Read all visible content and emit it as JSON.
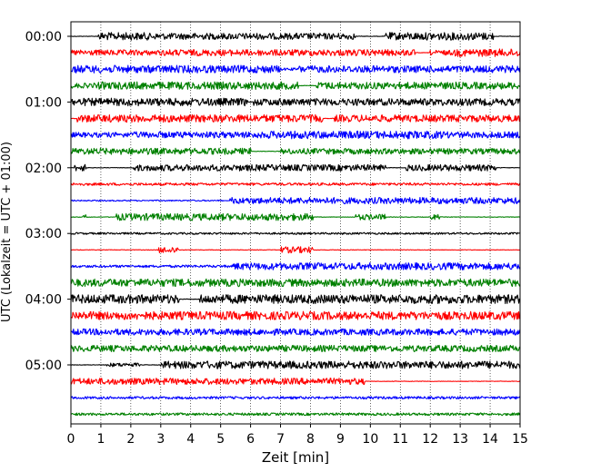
{
  "chart_data": {
    "type": "line",
    "title": "",
    "xlabel": "Zeit  [min]",
    "ylabel": "UTC (Lokalzeit = UTC + 01:00)",
    "xlim": [
      0,
      15
    ],
    "x_ticks": [
      "0",
      "1",
      "2",
      "3",
      "4",
      "5",
      "6",
      "7",
      "8",
      "9",
      "10",
      "11",
      "12",
      "13",
      "14",
      "15"
    ],
    "y_ticks": [
      "00:00",
      "01:00",
      "02:00",
      "03:00",
      "04:00",
      "05:00"
    ],
    "grid": "vertical dotted",
    "color_cycle": [
      "#000000",
      "#ff0000",
      "#0000ff",
      "#008000"
    ],
    "trace_minutes": 15,
    "trace_count": 24,
    "series": [
      {
        "values": [
          [
            0.9,
            2.6,
            0.6
          ],
          [
            2.6,
            6.3,
            0.5
          ],
          [
            6.3,
            9.5,
            0.5
          ],
          [
            10.5,
            14.1,
            0.6
          ]
        ]
      },
      {
        "values": [
          [
            0.0,
            2.5,
            0.45
          ],
          [
            2.5,
            3.0,
            0.4
          ],
          [
            3.0,
            11.5,
            0.5
          ],
          [
            12.0,
            12.8,
            0.4
          ],
          [
            12.8,
            15.0,
            0.6
          ]
        ]
      },
      {
        "values": [
          [
            0.0,
            7.0,
            0.6
          ],
          [
            7.0,
            7.6,
            0.2
          ],
          [
            7.6,
            15.0,
            0.55
          ]
        ]
      },
      {
        "values": [
          [
            0.0,
            0.9,
            0.4
          ],
          [
            0.9,
            7.6,
            0.6
          ],
          [
            8.2,
            15.0,
            0.55
          ]
        ]
      },
      {
        "values": [
          [
            0.0,
            5.9,
            0.6
          ],
          [
            6.1,
            15.0,
            0.55
          ]
        ]
      },
      {
        "values": [
          [
            0.2,
            8.4,
            0.6
          ],
          [
            8.8,
            15.0,
            0.55
          ]
        ]
      },
      {
        "values": [
          [
            0.0,
            2.0,
            0.4
          ],
          [
            2.0,
            6.6,
            0.5
          ],
          [
            6.6,
            12.5,
            0.6
          ],
          [
            12.5,
            15.0,
            0.5
          ]
        ]
      },
      {
        "values": [
          [
            0.0,
            6.0,
            0.5
          ],
          [
            7.0,
            15.0,
            0.45
          ]
        ]
      },
      {
        "values": [
          [
            0.1,
            0.5,
            0.55
          ],
          [
            2.1,
            10.5,
            0.5
          ],
          [
            11.2,
            14.2,
            0.5
          ]
        ]
      },
      {
        "values": [
          [
            0.0,
            15.0,
            0.2
          ]
        ]
      },
      {
        "values": [
          [
            0.0,
            5.1,
            0.1
          ],
          [
            5.3,
            7.7,
            0.5
          ],
          [
            7.7,
            15.0,
            0.5
          ]
        ]
      },
      {
        "values": [
          [
            0.4,
            0.5,
            0.4
          ],
          [
            1.5,
            8.1,
            0.55
          ],
          [
            9.5,
            10.5,
            0.45
          ],
          [
            12.0,
            12.3,
            0.4
          ]
        ]
      },
      {
        "values": [
          [
            0.0,
            15.0,
            0.15
          ]
        ]
      },
      {
        "values": [
          [
            2.9,
            3.6,
            0.5
          ],
          [
            7.0,
            8.1,
            0.5
          ]
        ]
      },
      {
        "values": [
          [
            0.0,
            5.4,
            0.2
          ],
          [
            5.4,
            15.0,
            0.55
          ]
        ]
      },
      {
        "values": [
          [
            0.0,
            15.0,
            0.6
          ]
        ]
      },
      {
        "values": [
          [
            0.0,
            3.6,
            0.7
          ],
          [
            4.3,
            15.0,
            0.7
          ]
        ]
      },
      {
        "values": [
          [
            0.0,
            15.0,
            0.65
          ]
        ]
      },
      {
        "values": [
          [
            0.0,
            15.0,
            0.5
          ]
        ]
      },
      {
        "values": [
          [
            0.0,
            15.0,
            0.5
          ]
        ]
      },
      {
        "values": [
          [
            1.2,
            2.3,
            0.3
          ],
          [
            3.0,
            15.0,
            0.6
          ]
        ]
      },
      {
        "values": [
          [
            0.0,
            9.8,
            0.5
          ]
        ]
      },
      {
        "values": [
          [
            0.0,
            15.0,
            0.2
          ]
        ]
      },
      {
        "values": [
          [
            0.0,
            15.0,
            0.2
          ]
        ]
      }
    ]
  }
}
